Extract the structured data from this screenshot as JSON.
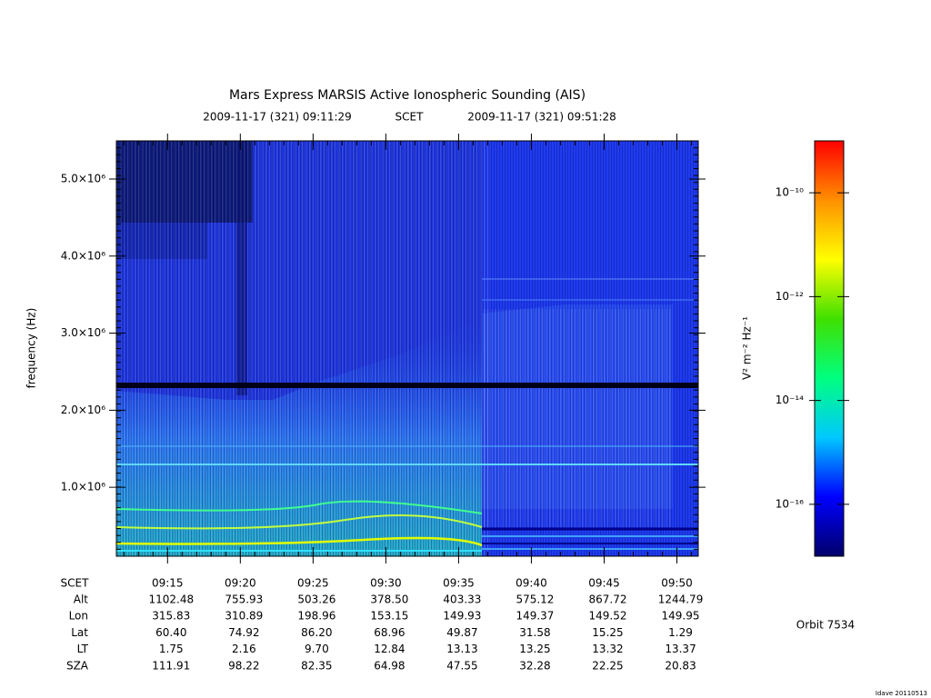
{
  "chart_data": {
    "type": "spectrogram",
    "title": "Mars Express MARSIS Active Ionospheric Sounding (AIS)",
    "start": "2009-11-17 (321) 09:11:29",
    "time_system": "SCET",
    "end": "2009-11-17 (321) 09:51:28",
    "y_label": "frequency (Hz)",
    "xlim": [
      "09:11:29",
      "09:51:28"
    ],
    "xticks": [
      "09:15",
      "09:20",
      "09:25",
      "09:30",
      "09:35",
      "09:40",
      "09:45",
      "09:50"
    ],
    "ylim": [
      105000,
      5495000
    ],
    "yticks": [
      {
        "value": 1000000,
        "label": "1.0×10⁶"
      },
      {
        "value": 2000000,
        "label": "2.0×10⁶"
      },
      {
        "value": 3000000,
        "label": "3.0×10⁶"
      },
      {
        "value": 4000000,
        "label": "4.0×10⁶"
      },
      {
        "value": 5000000,
        "label": "5.0×10⁶"
      }
    ],
    "colorbar": {
      "label": "V² m⁻² Hz⁻¹",
      "log_scale": true,
      "zlim": [
        1e-17,
        1e-09
      ],
      "zticks": [
        {
          "value": 1e-16,
          "label": "10⁻¹⁶"
        },
        {
          "value": 1e-14,
          "label": "10⁻¹⁴"
        },
        {
          "value": 1e-12,
          "label": "10⁻¹²"
        },
        {
          "value": 1e-10,
          "label": "10⁻¹⁰"
        }
      ],
      "colors": [
        "#00006a",
        "#0000ff",
        "#00c8ff",
        "#00ff80",
        "#40e000",
        "#ffff00",
        "#ff9000",
        "#ff0000"
      ]
    },
    "ephemeris": {
      "row_label": "SCET",
      "rows": [
        {
          "name": "Alt",
          "values": [
            "1102.48",
            "755.93",
            "503.26",
            "378.50",
            "403.33",
            "575.12",
            "867.72",
            "1244.79"
          ]
        },
        {
          "name": "Lon",
          "values": [
            "315.83",
            "310.89",
            "198.96",
            "153.15",
            "149.93",
            "149.37",
            "149.52",
            "149.95"
          ]
        },
        {
          "name": "Lat",
          "values": [
            "60.40",
            "74.92",
            "86.20",
            "68.96",
            "49.87",
            "31.58",
            "15.25",
            "1.29"
          ]
        },
        {
          "name": "LT",
          "values": [
            "1.75",
            "2.16",
            "9.70",
            "12.84",
            "13.13",
            "13.25",
            "13.32",
            "13.37"
          ]
        },
        {
          "name": "SZA",
          "values": [
            "111.91",
            "98.22",
            "82.35",
            "64.98",
            "47.55",
            "32.28",
            "22.25",
            "20.83"
          ]
        }
      ]
    },
    "orbit": "Orbit 7534",
    "footer": "Idave 20110513"
  }
}
